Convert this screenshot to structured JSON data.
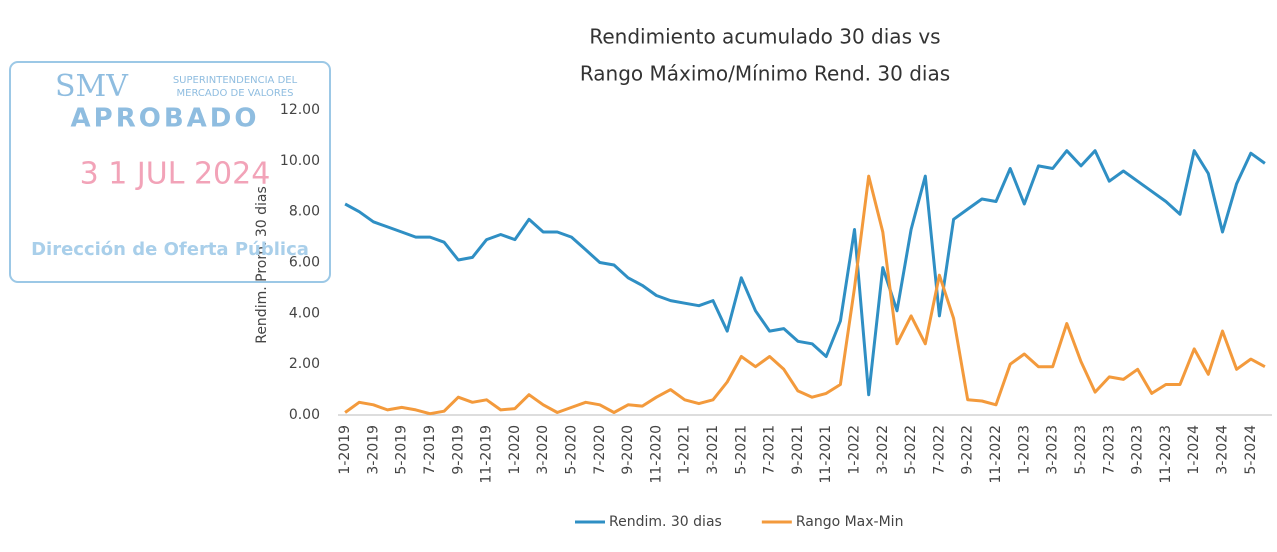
{
  "chart_data": {
    "type": "line",
    "title": [
      "Rendimiento acumulado 30 dias vs",
      "Rango Máximo/Mínimo Rend. 30 dias"
    ],
    "y_label": "Rendim. Prom. 30 dias",
    "categories": [
      "1-2019",
      null,
      "3-2019",
      null,
      "5-2019",
      null,
      "7-2019",
      null,
      "9-2019",
      null,
      "11-2019",
      null,
      "1-2020",
      null,
      "3-2020",
      null,
      "5-2020",
      null,
      "7-2020",
      null,
      "9-2020",
      null,
      "11-2020",
      null,
      "1-2021",
      null,
      "3-2021",
      null,
      "5-2021",
      null,
      "7-2021",
      null,
      "9-2021",
      null,
      "11-2021",
      null,
      "1-2022",
      null,
      "3-2022",
      null,
      "5-2022",
      null,
      "7-2022",
      null,
      "9-2022",
      null,
      "11-2022",
      null,
      "1-2023",
      null,
      "3-2023",
      null,
      "5-2023",
      null,
      "7-2023",
      null,
      "9-2023",
      null,
      "11-2023",
      null,
      "1-2024",
      null,
      "3-2024",
      null,
      "5-2024",
      null
    ],
    "series": [
      {
        "name": "Rendim. 30 dias",
        "color": "#2f8fc4",
        "values": [
          8.3,
          8.0,
          7.6,
          7.4,
          7.2,
          7.0,
          7.0,
          6.8,
          6.1,
          6.2,
          6.9,
          7.1,
          6.9,
          7.7,
          7.2,
          7.2,
          7.0,
          6.5,
          6.0,
          5.9,
          5.4,
          5.1,
          4.7,
          4.5,
          4.4,
          4.3,
          4.5,
          3.3,
          5.4,
          4.1,
          3.3,
          3.4,
          2.9,
          2.8,
          2.3,
          3.7,
          7.3,
          0.8,
          5.8,
          4.1,
          7.3,
          9.4,
          3.9,
          7.7,
          8.1,
          8.5,
          8.4,
          9.7,
          8.3,
          9.8,
          9.7,
          10.4,
          9.8,
          10.4,
          9.2,
          9.6,
          9.2,
          8.8,
          8.4,
          7.9,
          10.4,
          9.5,
          7.2,
          9.1,
          10.3,
          9.9
        ]
      },
      {
        "name": "Rango Max-Min",
        "color": "#f39a3c",
        "values": [
          0.1,
          0.5,
          0.4,
          0.2,
          0.3,
          0.2,
          0.05,
          0.15,
          0.7,
          0.5,
          0.6,
          0.2,
          0.25,
          0.8,
          0.4,
          0.1,
          0.3,
          0.5,
          0.4,
          0.1,
          0.4,
          0.35,
          0.7,
          1.0,
          0.6,
          0.45,
          0.6,
          1.3,
          2.3,
          1.9,
          2.3,
          1.8,
          0.95,
          0.7,
          0.85,
          1.2,
          5.0,
          9.4,
          7.2,
          2.8,
          3.9,
          2.8,
          5.5,
          3.8,
          0.6,
          0.55,
          0.4,
          2.0,
          2.4,
          1.9,
          1.9,
          3.6,
          2.1,
          0.9,
          1.5,
          1.4,
          1.8,
          0.85,
          1.2,
          1.2,
          2.6,
          1.6,
          3.3,
          1.8,
          2.2,
          1.9
        ]
      }
    ],
    "ylim": [
      0,
      12
    ],
    "yticks": [
      {
        "value": 0,
        "label": "0.00"
      },
      {
        "value": 2,
        "label": "2.00"
      },
      {
        "value": 4,
        "label": "4.00"
      },
      {
        "value": 6,
        "label": "6.00"
      },
      {
        "value": 8,
        "label": "8.00"
      },
      {
        "value": 10,
        "label": "10.00"
      },
      {
        "value": 12,
        "label": "12.00"
      }
    ],
    "legend": "bottom"
  },
  "stamp": {
    "logo": "SMV",
    "org": [
      "SUPERINTENDENCIA DEL",
      "MERCADO DE VALORES"
    ],
    "status": "APROBADO",
    "date": "3 1 JUL 2024",
    "office": "Dirección de Oferta Pública"
  }
}
